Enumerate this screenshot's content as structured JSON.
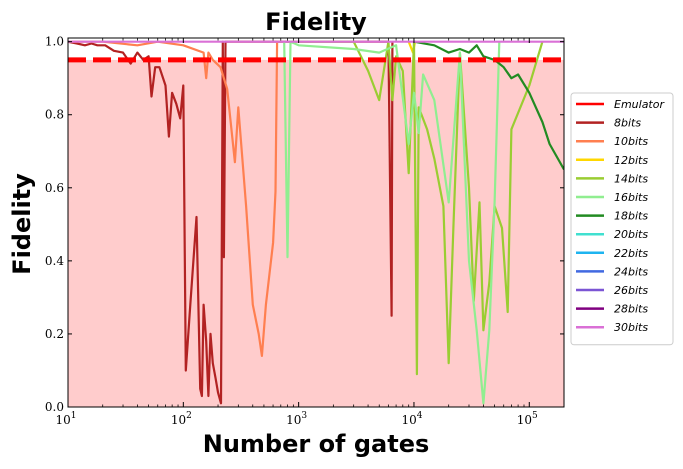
{
  "chart_data": {
    "type": "line",
    "title": "Fidelity",
    "xlabel": "Number of gates",
    "ylabel": "Fidelity",
    "xscale": "log",
    "xlim": [
      10,
      200000
    ],
    "ylim": [
      0.0,
      1.01
    ],
    "grid": false,
    "legend_placement": "right",
    "threshold": {
      "value": 0.95,
      "color": "#ff0000",
      "style": "dashed"
    },
    "shaded_region": {
      "y_from": 0.0,
      "y_to": 0.95,
      "color": "#ffcccc"
    },
    "x_ticks": [
      {
        "value": 10,
        "base": "10",
        "exp": "1"
      },
      {
        "value": 100,
        "base": "10",
        "exp": "2"
      },
      {
        "value": 1000,
        "base": "10",
        "exp": "3"
      },
      {
        "value": 10000,
        "base": "10",
        "exp": "4"
      },
      {
        "value": 100000,
        "base": "10",
        "exp": "5"
      }
    ],
    "y_ticks": [
      {
        "value": 0.0,
        "label": "0.0"
      },
      {
        "value": 0.2,
        "label": "0.2"
      },
      {
        "value": 0.4,
        "label": "0.4"
      },
      {
        "value": 0.6,
        "label": "0.6"
      },
      {
        "value": 0.8,
        "label": "0.8"
      },
      {
        "value": 1.0,
        "label": "1.0"
      }
    ],
    "series": [
      {
        "name": "Emulator",
        "color": "#ff0000",
        "points": []
      },
      {
        "name": "8bits",
        "color": "#b22222",
        "points": [
          [
            10,
            1.0
          ],
          [
            12,
            0.995
          ],
          [
            14,
            0.99
          ],
          [
            16,
            0.995
          ],
          [
            18,
            0.99
          ],
          [
            21,
            0.99
          ],
          [
            25,
            0.975
          ],
          [
            30,
            0.97
          ],
          [
            35,
            0.94
          ],
          [
            40,
            0.97
          ],
          [
            45,
            0.95
          ],
          [
            50,
            0.96
          ],
          [
            53,
            0.85
          ],
          [
            57,
            0.93
          ],
          [
            62,
            0.93
          ],
          [
            70,
            0.88
          ],
          [
            75,
            0.74
          ],
          [
            80,
            0.86
          ],
          [
            87,
            0.83
          ],
          [
            94,
            0.79
          ],
          [
            100,
            0.88
          ],
          [
            105,
            0.1
          ],
          [
            115,
            0.28
          ],
          [
            130,
            0.52
          ],
          [
            140,
            0.05
          ],
          [
            145,
            0.03
          ],
          [
            150,
            0.28
          ],
          [
            158,
            0.18
          ],
          [
            165,
            0.03
          ],
          [
            172,
            0.2
          ],
          [
            180,
            0.12
          ],
          [
            190,
            0.08
          ],
          [
            200,
            0.04
          ],
          [
            212,
            0.01
          ],
          [
            220,
            1.0
          ],
          [
            225,
            0.41
          ],
          [
            232,
            1.0
          ],
          [
            240,
            1.0
          ],
          [
            6000,
            1.0
          ],
          [
            6400,
            0.25
          ],
          [
            6500,
            1.0
          ]
        ]
      },
      {
        "name": "10bits",
        "color": "#ff7f50",
        "points": [
          [
            10,
            1.0
          ],
          [
            20,
            1.0
          ],
          [
            40,
            0.99
          ],
          [
            60,
            1.0
          ],
          [
            100,
            0.99
          ],
          [
            150,
            0.97
          ],
          [
            158,
            0.9
          ],
          [
            165,
            0.97
          ],
          [
            180,
            0.95
          ],
          [
            210,
            0.93
          ],
          [
            240,
            0.87
          ],
          [
            280,
            0.67
          ],
          [
            300,
            0.82
          ],
          [
            350,
            0.55
          ],
          [
            400,
            0.28
          ],
          [
            450,
            0.2
          ],
          [
            480,
            0.14
          ],
          [
            520,
            0.28
          ],
          [
            600,
            0.45
          ],
          [
            630,
            0.59
          ],
          [
            650,
            1.0
          ],
          [
            700,
            1.0
          ]
        ]
      },
      {
        "name": "12bits",
        "color": "#ffd700",
        "points": [
          [
            9000,
            1.0
          ],
          [
            9800,
            0.97
          ],
          [
            10200,
            1.0
          ]
        ]
      },
      {
        "name": "14bits",
        "color": "#9acd32",
        "points": [
          [
            800,
            1.0
          ],
          [
            3000,
            1.0
          ],
          [
            4000,
            0.92
          ],
          [
            5000,
            0.84
          ],
          [
            6000,
            1.0
          ],
          [
            6500,
            0.84
          ],
          [
            7000,
            0.96
          ],
          [
            8000,
            0.92
          ],
          [
            9000,
            0.64
          ],
          [
            10000,
            1.0
          ],
          [
            10600,
            0.09
          ],
          [
            11000,
            0.82
          ],
          [
            13000,
            0.76
          ],
          [
            15000,
            0.68
          ],
          [
            18000,
            0.55
          ],
          [
            20000,
            0.12
          ],
          [
            22000,
            0.5
          ],
          [
            25000,
            0.97
          ],
          [
            30000,
            0.6
          ],
          [
            33000,
            0.29
          ],
          [
            37000,
            0.56
          ],
          [
            40000,
            0.21
          ],
          [
            45000,
            0.34
          ],
          [
            50000,
            0.55
          ],
          [
            58000,
            0.49
          ],
          [
            65000,
            0.26
          ],
          [
            70000,
            0.76
          ],
          [
            100000,
            0.88
          ],
          [
            130000,
            1.0
          ]
        ]
      },
      {
        "name": "16bits",
        "color": "#90ee90",
        "points": [
          [
            750,
            1.0
          ],
          [
            800,
            0.41
          ],
          [
            850,
            1.0
          ],
          [
            1000,
            0.99
          ],
          [
            3000,
            0.98
          ],
          [
            5000,
            0.97
          ],
          [
            7000,
            0.99
          ],
          [
            9000,
            0.72
          ],
          [
            10000,
            0.86
          ],
          [
            11000,
            0.75
          ],
          [
            12000,
            0.91
          ],
          [
            15000,
            0.84
          ],
          [
            20000,
            0.56
          ],
          [
            25000,
            0.97
          ],
          [
            30000,
            0.4
          ],
          [
            35000,
            0.21
          ],
          [
            40000,
            0.01
          ],
          [
            45000,
            0.21
          ],
          [
            50000,
            0.56
          ],
          [
            55000,
            1.0
          ]
        ]
      },
      {
        "name": "18bits",
        "color": "#228b22",
        "points": [
          [
            10000,
            1.0
          ],
          [
            15000,
            0.99
          ],
          [
            20000,
            0.97
          ],
          [
            25000,
            0.98
          ],
          [
            30000,
            0.97
          ],
          [
            35000,
            0.99
          ],
          [
            40000,
            0.96
          ],
          [
            50000,
            0.95
          ],
          [
            60000,
            0.93
          ],
          [
            70000,
            0.9
          ],
          [
            80000,
            0.91
          ],
          [
            100000,
            0.86
          ],
          [
            130000,
            0.78
          ],
          [
            150000,
            0.72
          ],
          [
            200000,
            0.65
          ]
        ]
      },
      {
        "name": "20bits",
        "color": "#40e0d0",
        "points": []
      },
      {
        "name": "22bits",
        "color": "#1eb4f0",
        "points": []
      },
      {
        "name": "24bits",
        "color": "#4169e1",
        "points": []
      },
      {
        "name": "26bits",
        "color": "#7b55d4",
        "points": []
      },
      {
        "name": "28bits",
        "color": "#800080",
        "points": []
      },
      {
        "name": "30bits",
        "color": "#da70d6",
        "points": [
          [
            10,
            1.0
          ],
          [
            200000,
            1.0
          ]
        ]
      }
    ]
  }
}
